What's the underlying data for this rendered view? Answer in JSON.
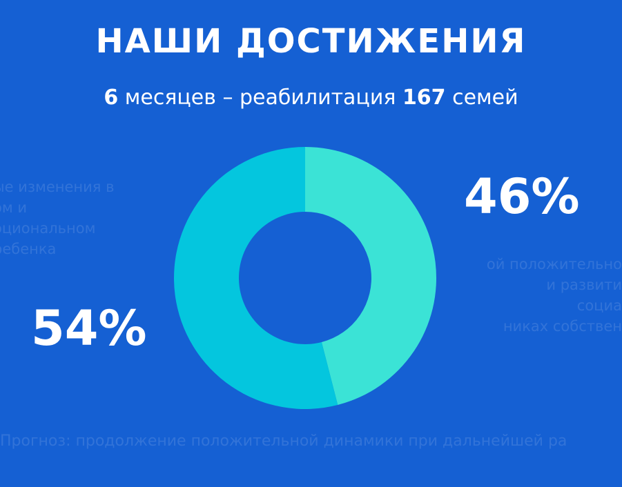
{
  "title": "НАШИ ДОСТИЖЕНИЯ",
  "subtitle": {
    "n1": "6",
    "t1": " месяцев – реабилитация ",
    "n2": "167",
    "t2": " семей"
  },
  "faded_text": {
    "left": [
      "ые изменения в",
      "ом и",
      "оциональном",
      "ребенка"
    ],
    "right": [
      "ой положительно",
      "и развити",
      "социа",
      "никах собствен"
    ],
    "bottom": "Прогноз: продолжение положительной динамики при дальнейшей ра"
  },
  "chart_data": {
    "type": "pie",
    "donut": true,
    "title": "",
    "slices": [
      {
        "label": "46%",
        "value": 46,
        "color": "#3BE3D6"
      },
      {
        "label": "54%",
        "value": 54,
        "color": "#04C6DE"
      }
    ]
  },
  "colors": {
    "background": "#1560D3",
    "hole": "#1560D3"
  }
}
